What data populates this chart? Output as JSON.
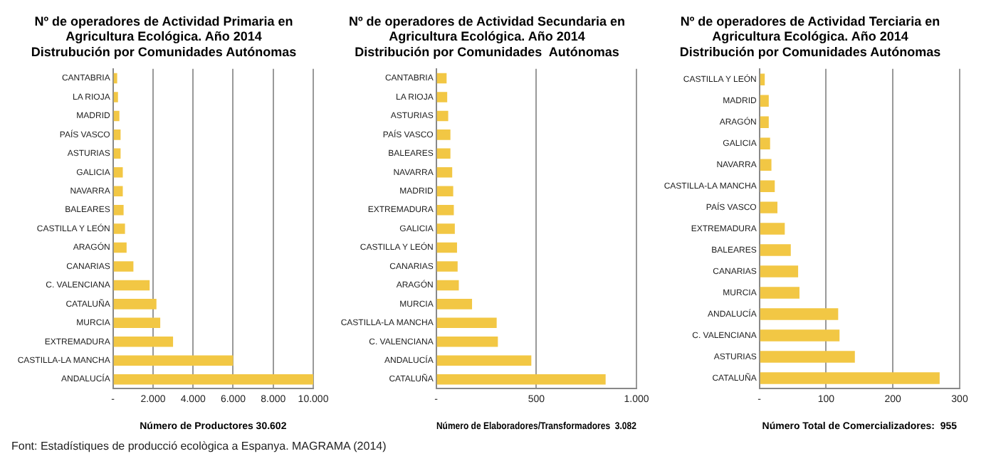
{
  "chart_data": [
    {
      "type": "bar",
      "orientation": "horizontal",
      "title": "Nº de operadores de Actividad Primaria en\nAgricultura Ecológica. Año 2014\nDistrubución por Comunidades Autónomas",
      "xlabel": "Número de Productores 30.602",
      "categories": [
        "CANTABRIA",
        "LA RIOJA",
        "MADRID",
        "PAÍS VASCO",
        "ASTURIAS",
        "GALICIA",
        "NAVARRA",
        "BALEARES",
        "CASTILLA Y LEÓN",
        "ARAGÓN",
        "CANARIAS",
        "C. VALENCIANA",
        "CATALUÑA",
        "MURCIA",
        "EXTREMADURA",
        "CASTILLA-LA MANCHA",
        "ANDALUCÍA"
      ],
      "values": [
        210,
        250,
        320,
        380,
        380,
        490,
        490,
        530,
        600,
        680,
        1020,
        1830,
        2170,
        2360,
        3000,
        6000,
        10000
      ],
      "color": "#f2c744",
      "xlim": [
        0,
        10000
      ],
      "xticks": [
        {
          "value": 0,
          "label": "-"
        },
        {
          "value": 2000,
          "label": "2.000"
        },
        {
          "value": 4000,
          "label": "4.000"
        },
        {
          "value": 6000,
          "label": "6.000"
        },
        {
          "value": 8000,
          "label": "8.000"
        },
        {
          "value": 10000,
          "label": "10.000"
        }
      ],
      "grid": "x",
      "legend": false,
      "annotations": [
        "Font: Estadístiques de producció ecològica a Espanya. MAGRAMA (2014)"
      ]
    },
    {
      "type": "bar",
      "orientation": "horizontal",
      "title": "Nº de operadores de Actividad Secundaria en\nAgricultura Ecológica. Año 2014\nDistribución por Comunidades  Autónomas",
      "xlabel": "Número de Elaboradores/Transformadores  3.082",
      "categories": [
        "CANTABRIA",
        "LA RIOJA",
        "ASTURIAS",
        "PAÍS VASCO",
        "BALEARES",
        "NAVARRA",
        "MADRID",
        "EXTREMADURA",
        "GALICIA",
        "CASTILLA Y LEÓN",
        "CANARIAS",
        "ARAGÓN",
        "MURCIA",
        "CASTILLA-LA MANCHA",
        "C. VALENCIANA",
        "ANDALUCÍA",
        "CATALUÑA"
      ],
      "values": [
        52,
        55,
        60,
        71,
        71,
        80,
        85,
        88,
        93,
        104,
        107,
        113,
        179,
        302,
        308,
        475,
        846
      ],
      "color": "#f2c744",
      "xlim": [
        0,
        1000
      ],
      "xticks": [
        {
          "value": 0,
          "label": "-"
        },
        500,
        {
          "value": 1000,
          "label": "1.000"
        }
      ],
      "grid": "x",
      "legend": false
    },
    {
      "type": "bar",
      "orientation": "horizontal",
      "title": "Nº de operadores de Actividad Terciaria en\nAgricultura Ecológica. Año 2014\nDistribución por Comunidades Autónomas",
      "xlabel": "Número Total de Comercializadores:  955",
      "categories": [
        "CASTILLA Y LEÓN",
        "MADRID",
        "ARAGÓN",
        "GALICIA",
        "NAVARRA",
        "CASTILLA-LA MANCHA",
        "PAÍS VASCO",
        "EXTREMADURA",
        "BALEARES",
        "CANARIAS",
        "MURCIA",
        "ANDALUCÍA",
        "C. VALENCIANA",
        "ASTURIAS",
        "CATALUÑA"
      ],
      "values": [
        8,
        14,
        14,
        16,
        18,
        23,
        27,
        38,
        47,
        58,
        60,
        118,
        120,
        143,
        270
      ],
      "color": "#f2c744",
      "xlim": [
        0,
        300
      ],
      "xticks": [
        {
          "value": 0,
          "label": "-"
        },
        100,
        200,
        300
      ],
      "grid": "x",
      "legend": false
    }
  ]
}
